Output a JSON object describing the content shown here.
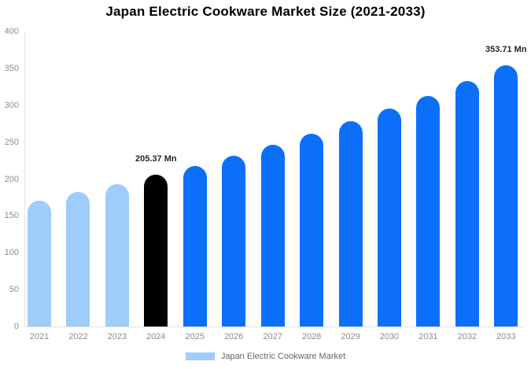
{
  "title": "Japan Electric Cookware Market Size (2021-2033)",
  "legend": {
    "label": "Japan Electric Cookware Market"
  },
  "colors": {
    "background": "#FFFFFF",
    "title_text": "#000000",
    "past_bar": "#9ECDFB",
    "highlight_bar": "#000000",
    "forecast_bar": "#0B6FFA",
    "axis_line": "#E3E3E3",
    "tick_text": "#8C8C8C",
    "data_label_text": "#262626",
    "legend_text": "#666666"
  },
  "chart_data": {
    "type": "bar",
    "title": "Japan Electric Cookware Market Size (2021-2033)",
    "unit": "Mn",
    "categories": [
      "2021",
      "2022",
      "2023",
      "2024",
      "2025",
      "2026",
      "2027",
      "2028",
      "2029",
      "2030",
      "2031",
      "2032",
      "2033"
    ],
    "series": [
      {
        "name": "Japan Electric Cookware Market",
        "values": [
          171,
          182,
          193,
          205.37,
          218,
          232,
          246,
          261,
          278,
          295,
          313,
          333,
          353.71
        ]
      }
    ],
    "bar_types": [
      "past",
      "past",
      "past",
      "highlight",
      "forecast",
      "forecast",
      "forecast",
      "forecast",
      "forecast",
      "forecast",
      "forecast",
      "forecast",
      "forecast"
    ],
    "data_labels": [
      null,
      null,
      null,
      "205.37 Mn",
      null,
      null,
      null,
      null,
      null,
      null,
      null,
      null,
      "353.71 Mn"
    ],
    "ylim": [
      0,
      400
    ],
    "y_ticks": [
      400,
      350,
      300,
      250,
      200,
      150,
      100,
      50,
      0
    ],
    "xlabel": "",
    "ylabel": "",
    "grid": false,
    "legend_position": "bottom"
  }
}
